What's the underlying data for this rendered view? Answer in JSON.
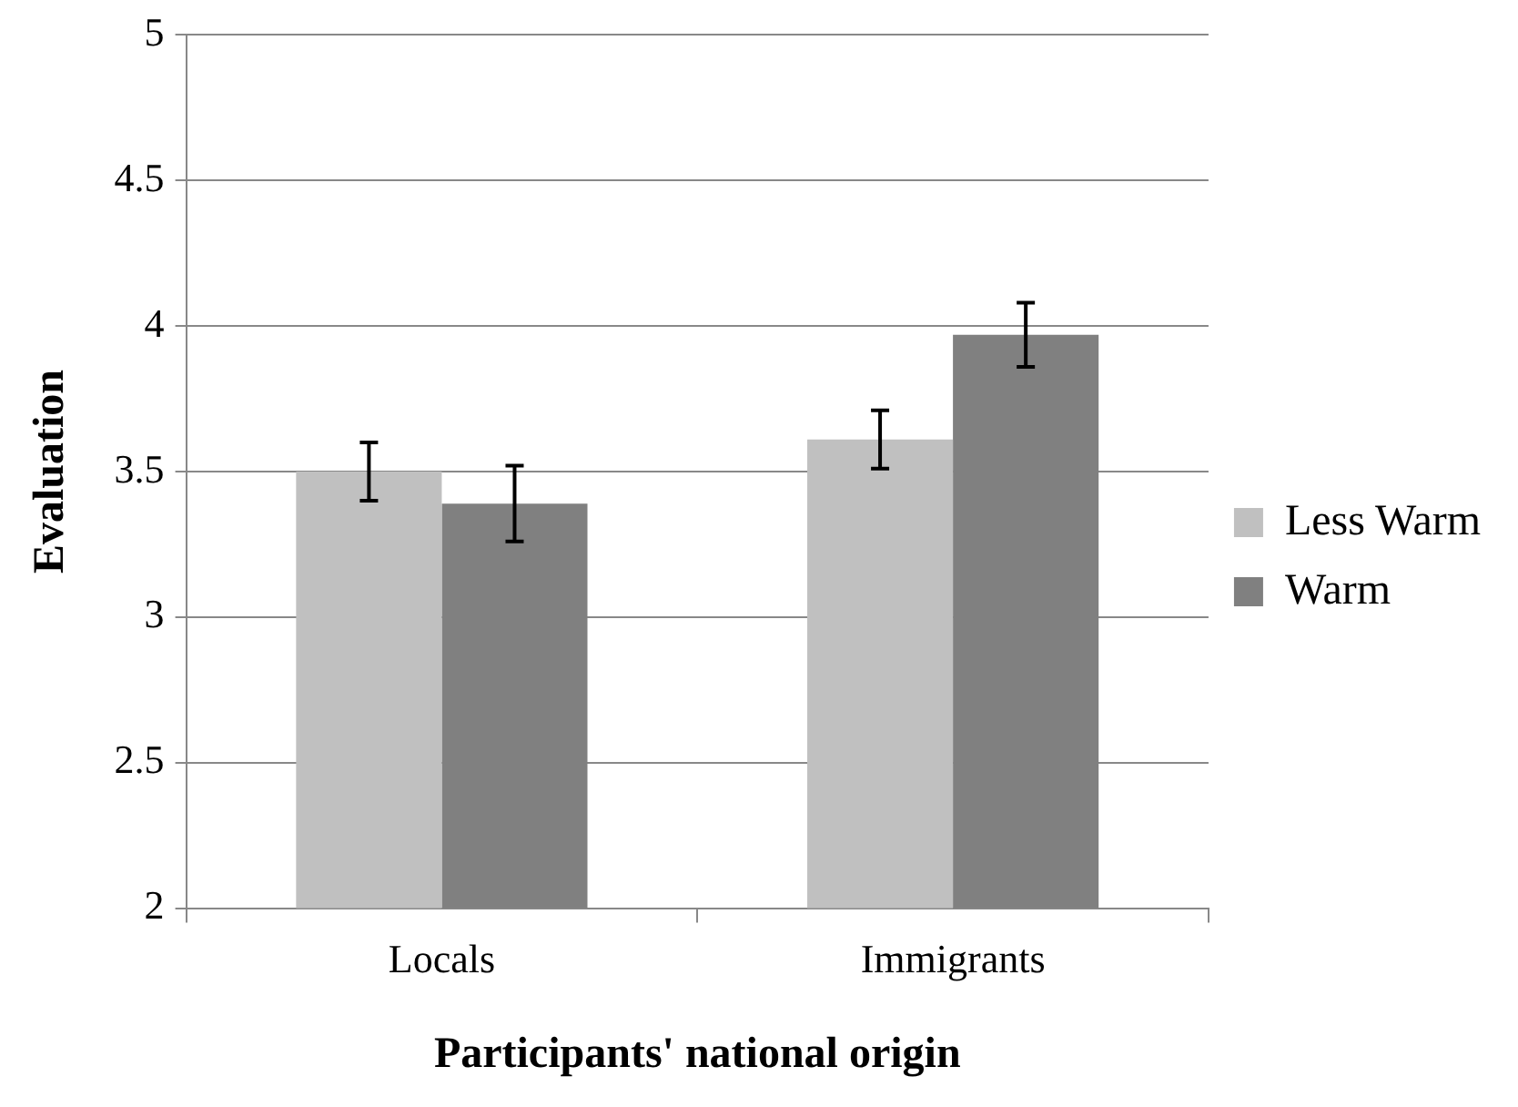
{
  "chart_data": {
    "type": "bar",
    "xlabel": "Participants' national origin",
    "ylabel": "Evaluation",
    "categories": [
      "Locals",
      "Immigrants"
    ],
    "series": [
      {
        "name": "Less Warm",
        "color": "#c0c0c0",
        "values": [
          3.5,
          3.61
        ],
        "errors": [
          0.1,
          0.1
        ]
      },
      {
        "name": "Warm",
        "color": "#808080",
        "values": [
          3.39,
          3.97
        ],
        "errors": [
          0.13,
          0.11
        ]
      }
    ],
    "ylim": [
      2,
      5
    ],
    "yticks": [
      2,
      2.5,
      3,
      3.5,
      4,
      4.5,
      5
    ],
    "grid": "y",
    "legend": "right"
  }
}
